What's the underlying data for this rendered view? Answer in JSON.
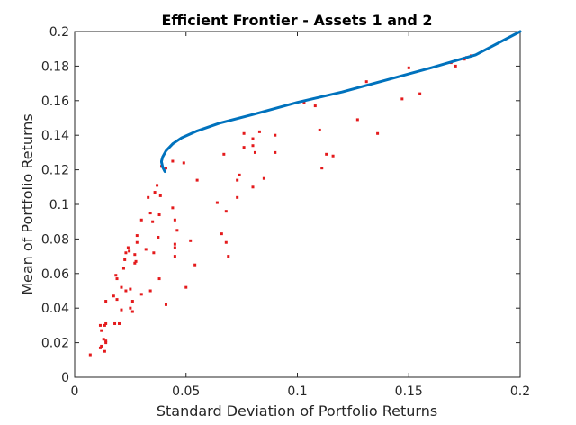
{
  "chart_data": {
    "type": "scatter",
    "title": "Efficient Frontier - Assets 1 and 2",
    "xlabel": "Standard Deviation of Portfolio Returns",
    "ylabel": "Mean of Portfolio Returns",
    "xlim": [
      0,
      0.2
    ],
    "ylim": [
      0,
      0.2
    ],
    "xticks": [
      0,
      0.05,
      0.1,
      0.15,
      0.2
    ],
    "xtick_labels": [
      "0",
      "0.05",
      "0.1",
      "0.15",
      "0.2"
    ],
    "yticks": [
      0,
      0.02,
      0.04,
      0.06,
      0.08,
      0.1,
      0.12,
      0.14,
      0.16,
      0.18,
      0.2
    ],
    "ytick_labels": [
      "0",
      "0.02",
      "0.04",
      "0.06",
      "0.08",
      "0.1",
      "0.12",
      "0.14",
      "0.16",
      "0.18",
      "0.2"
    ],
    "grid": false,
    "series": [
      {
        "kind": "line",
        "color": "#0072bd",
        "x": [
          0.0405,
          0.0395,
          0.039,
          0.039,
          0.0395,
          0.041,
          0.044,
          0.048,
          0.055,
          0.065,
          0.08,
          0.1,
          0.12,
          0.14,
          0.16,
          0.18,
          0.2
        ],
        "y": [
          0.119,
          0.1215,
          0.1245,
          0.125,
          0.1275,
          0.131,
          0.135,
          0.1385,
          0.1425,
          0.147,
          0.152,
          0.159,
          0.165,
          0.172,
          0.179,
          0.1865,
          0.2
        ]
      },
      {
        "kind": "scatter",
        "color": "#e41a1c",
        "points": [
          [
            0.007,
            0.013
          ],
          [
            0.0115,
            0.03
          ],
          [
            0.012,
            0.027
          ],
          [
            0.0115,
            0.017
          ],
          [
            0.012,
            0.018
          ],
          [
            0.013,
            0.022
          ],
          [
            0.0135,
            0.015
          ],
          [
            0.014,
            0.02
          ],
          [
            0.014,
            0.021
          ],
          [
            0.0135,
            0.03
          ],
          [
            0.014,
            0.031
          ],
          [
            0.014,
            0.044
          ],
          [
            0.018,
            0.031
          ],
          [
            0.0175,
            0.047
          ],
          [
            0.019,
            0.045
          ],
          [
            0.0185,
            0.059
          ],
          [
            0.019,
            0.057
          ],
          [
            0.02,
            0.031
          ],
          [
            0.021,
            0.039
          ],
          [
            0.021,
            0.052
          ],
          [
            0.022,
            0.063
          ],
          [
            0.0225,
            0.068
          ],
          [
            0.023,
            0.072
          ],
          [
            0.023,
            0.05
          ],
          [
            0.024,
            0.075
          ],
          [
            0.0245,
            0.073
          ],
          [
            0.025,
            0.04
          ],
          [
            0.025,
            0.051
          ],
          [
            0.026,
            0.038
          ],
          [
            0.026,
            0.044
          ],
          [
            0.027,
            0.066
          ],
          [
            0.027,
            0.071
          ],
          [
            0.028,
            0.078
          ],
          [
            0.028,
            0.082
          ],
          [
            0.0275,
            0.067
          ],
          [
            0.03,
            0.091
          ],
          [
            0.03,
            0.048
          ],
          [
            0.032,
            0.074
          ],
          [
            0.033,
            0.104
          ],
          [
            0.034,
            0.05
          ],
          [
            0.034,
            0.095
          ],
          [
            0.035,
            0.09
          ],
          [
            0.0355,
            0.072
          ],
          [
            0.036,
            0.107
          ],
          [
            0.037,
            0.111
          ],
          [
            0.0375,
            0.081
          ],
          [
            0.038,
            0.057
          ],
          [
            0.038,
            0.094
          ],
          [
            0.0385,
            0.105
          ],
          [
            0.039,
            0.122
          ],
          [
            0.041,
            0.121
          ],
          [
            0.041,
            0.042
          ],
          [
            0.044,
            0.125
          ],
          [
            0.044,
            0.098
          ],
          [
            0.045,
            0.091
          ],
          [
            0.045,
            0.075
          ],
          [
            0.045,
            0.077
          ],
          [
            0.045,
            0.07
          ],
          [
            0.046,
            0.085
          ],
          [
            0.049,
            0.124
          ],
          [
            0.05,
            0.052
          ],
          [
            0.052,
            0.079
          ],
          [
            0.054,
            0.065
          ],
          [
            0.055,
            0.114
          ],
          [
            0.064,
            0.101
          ],
          [
            0.066,
            0.083
          ],
          [
            0.067,
            0.129
          ],
          [
            0.068,
            0.078
          ],
          [
            0.068,
            0.096
          ],
          [
            0.069,
            0.07
          ],
          [
            0.073,
            0.114
          ],
          [
            0.073,
            0.104
          ],
          [
            0.074,
            0.117
          ],
          [
            0.076,
            0.133
          ],
          [
            0.076,
            0.141
          ],
          [
            0.08,
            0.138
          ],
          [
            0.08,
            0.134
          ],
          [
            0.08,
            0.11
          ],
          [
            0.081,
            0.13
          ],
          [
            0.083,
            0.142
          ],
          [
            0.085,
            0.115
          ],
          [
            0.09,
            0.14
          ],
          [
            0.09,
            0.13
          ],
          [
            0.103,
            0.159
          ],
          [
            0.108,
            0.157
          ],
          [
            0.11,
            0.143
          ],
          [
            0.111,
            0.121
          ],
          [
            0.113,
            0.129
          ],
          [
            0.116,
            0.128
          ],
          [
            0.127,
            0.149
          ],
          [
            0.131,
            0.171
          ],
          [
            0.136,
            0.141
          ],
          [
            0.147,
            0.161
          ],
          [
            0.15,
            0.179
          ],
          [
            0.155,
            0.164
          ],
          [
            0.169,
            0.182
          ],
          [
            0.171,
            0.18
          ],
          [
            0.175,
            0.184
          ],
          [
            0.176,
            0.185
          ],
          [
            0.178,
            0.186
          ]
        ]
      }
    ]
  }
}
